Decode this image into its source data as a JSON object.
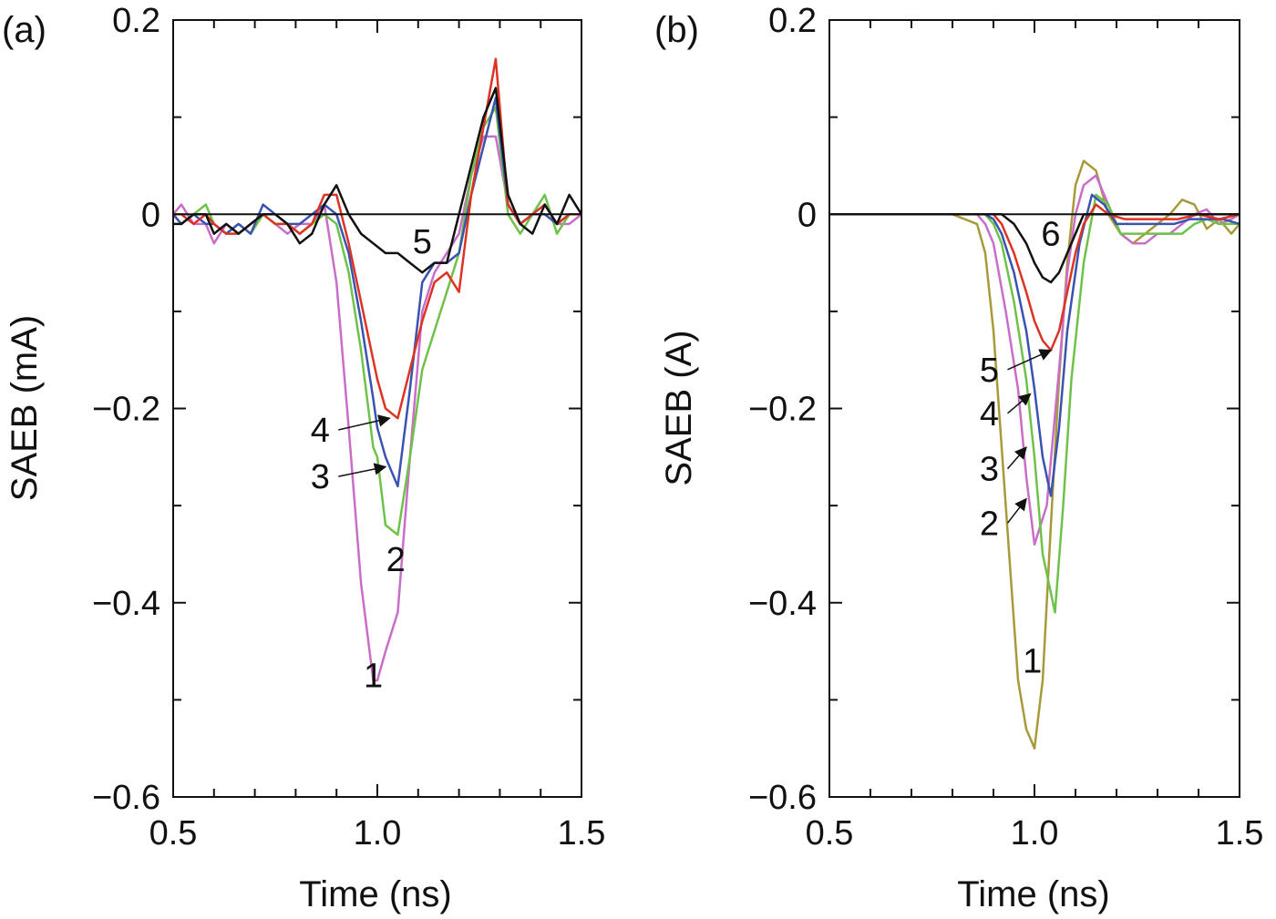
{
  "chart_data": [
    {
      "type": "line",
      "panel_label": "(a)",
      "xlabel": "Time (ns)",
      "ylabel": "SAEB (mA)",
      "xlim": [
        0.5,
        1.5
      ],
      "ylim": [
        -0.6,
        0.2
      ],
      "xticks": [
        0.5,
        1.0,
        1.5
      ],
      "xtick_labels": [
        "0.5",
        "1.0",
        "1.5"
      ],
      "yticks": [
        0.2,
        0,
        -0.2,
        -0.4,
        -0.6
      ],
      "ytick_labels": [
        "0.2",
        "0",
        "−0.2",
        "−0.4",
        "−0.6"
      ],
      "zero_line": true,
      "series": [
        {
          "name": "1",
          "color": "#c86ec8",
          "x": [
            0.5,
            0.52,
            0.55,
            0.58,
            0.6,
            0.63,
            0.66,
            0.69,
            0.72,
            0.75,
            0.78,
            0.81,
            0.84,
            0.87,
            0.9,
            0.93,
            0.96,
            0.99,
            1.0,
            1.02,
            1.05,
            1.08,
            1.11,
            1.14,
            1.17,
            1.2,
            1.23,
            1.26,
            1.29,
            1.32,
            1.35,
            1.38,
            1.41,
            1.44,
            1.47,
            1.5
          ],
          "y": [
            0.0,
            0.01,
            -0.01,
            -0.01,
            -0.03,
            -0.01,
            -0.02,
            -0.01,
            0.0,
            -0.01,
            -0.02,
            -0.01,
            -0.01,
            0.01,
            -0.07,
            -0.22,
            -0.38,
            -0.48,
            -0.48,
            -0.45,
            -0.41,
            -0.25,
            -0.1,
            -0.06,
            -0.04,
            -0.02,
            0.04,
            0.08,
            0.08,
            0.01,
            -0.01,
            0.0,
            0.0,
            -0.01,
            -0.01,
            0.0
          ]
        },
        {
          "name": "2",
          "color": "#6ec24a",
          "x": [
            0.5,
            0.52,
            0.55,
            0.58,
            0.6,
            0.63,
            0.66,
            0.69,
            0.72,
            0.75,
            0.78,
            0.81,
            0.84,
            0.87,
            0.9,
            0.93,
            0.96,
            0.99,
            1.0,
            1.02,
            1.05,
            1.08,
            1.11,
            1.14,
            1.17,
            1.2,
            1.23,
            1.26,
            1.29,
            1.32,
            1.35,
            1.38,
            1.41,
            1.44,
            1.47,
            1.5
          ],
          "y": [
            0.0,
            -0.01,
            0.0,
            0.01,
            -0.01,
            -0.02,
            -0.01,
            -0.02,
            0.0,
            -0.01,
            -0.01,
            -0.02,
            -0.01,
            0.0,
            -0.01,
            -0.06,
            -0.14,
            -0.24,
            -0.25,
            -0.32,
            -0.33,
            -0.25,
            -0.16,
            -0.12,
            -0.08,
            -0.04,
            0.04,
            0.09,
            0.11,
            0.0,
            -0.02,
            0.0,
            0.02,
            -0.02,
            0.0,
            0.0
          ]
        },
        {
          "name": "3",
          "color": "#3a52b0",
          "x": [
            0.5,
            0.52,
            0.55,
            0.58,
            0.6,
            0.63,
            0.66,
            0.69,
            0.72,
            0.75,
            0.78,
            0.81,
            0.84,
            0.87,
            0.9,
            0.93,
            0.96,
            0.99,
            1.0,
            1.02,
            1.05,
            1.08,
            1.11,
            1.14,
            1.17,
            1.2,
            1.23,
            1.26,
            1.29,
            1.32,
            1.35,
            1.38,
            1.41,
            1.44,
            1.47,
            1.5
          ],
          "y": [
            0.0,
            -0.01,
            0.0,
            -0.01,
            -0.01,
            -0.02,
            -0.01,
            -0.02,
            0.01,
            0.0,
            -0.01,
            -0.01,
            0.0,
            0.01,
            0.0,
            -0.04,
            -0.11,
            -0.19,
            -0.22,
            -0.25,
            -0.28,
            -0.18,
            -0.07,
            -0.05,
            -0.05,
            -0.04,
            0.02,
            0.07,
            0.12,
            0.01,
            -0.01,
            0.0,
            0.0,
            -0.01,
            0.0,
            0.0
          ]
        },
        {
          "name": "4",
          "color": "#dd3322",
          "x": [
            0.5,
            0.52,
            0.55,
            0.58,
            0.6,
            0.63,
            0.66,
            0.69,
            0.72,
            0.75,
            0.78,
            0.81,
            0.84,
            0.87,
            0.9,
            0.93,
            0.96,
            0.99,
            1.0,
            1.02,
            1.05,
            1.08,
            1.11,
            1.14,
            1.17,
            1.2,
            1.23,
            1.26,
            1.29,
            1.32,
            1.35,
            1.38,
            1.41,
            1.44,
            1.47,
            1.5
          ],
          "y": [
            0.0,
            0.0,
            -0.01,
            0.0,
            -0.01,
            -0.02,
            -0.02,
            -0.01,
            0.0,
            -0.01,
            -0.01,
            -0.02,
            -0.01,
            0.02,
            0.02,
            -0.03,
            -0.09,
            -0.15,
            -0.17,
            -0.2,
            -0.21,
            -0.16,
            -0.11,
            -0.07,
            -0.06,
            -0.08,
            0.02,
            0.09,
            0.16,
            0.01,
            -0.01,
            0.0,
            0.01,
            -0.01,
            0.0,
            0.0
          ]
        },
        {
          "name": "5",
          "color": "#111111",
          "x": [
            0.5,
            0.52,
            0.55,
            0.58,
            0.6,
            0.63,
            0.66,
            0.69,
            0.72,
            0.75,
            0.78,
            0.81,
            0.84,
            0.87,
            0.9,
            0.93,
            0.96,
            0.99,
            1.02,
            1.05,
            1.08,
            1.11,
            1.14,
            1.17,
            1.2,
            1.23,
            1.26,
            1.29,
            1.32,
            1.35,
            1.38,
            1.41,
            1.44,
            1.47,
            1.5
          ],
          "y": [
            -0.01,
            -0.01,
            0.0,
            0.0,
            -0.02,
            -0.01,
            -0.02,
            -0.01,
            0.0,
            0.0,
            -0.01,
            -0.03,
            -0.02,
            0.01,
            0.03,
            0.0,
            -0.02,
            -0.03,
            -0.04,
            -0.04,
            -0.05,
            -0.06,
            -0.05,
            -0.05,
            0.0,
            0.05,
            0.1,
            0.13,
            0.02,
            -0.01,
            -0.02,
            0.01,
            -0.01,
            0.02,
            0.0
          ]
        }
      ],
      "annotations": [
        {
          "text": "1",
          "x": 0.99,
          "y": -0.475
        },
        {
          "text": "2",
          "x": 1.045,
          "y": -0.355
        },
        {
          "text": "3",
          "x": 0.86,
          "y": -0.27,
          "arrow_to": [
            1.02,
            -0.26
          ]
        },
        {
          "text": "4",
          "x": 0.86,
          "y": -0.222,
          "arrow_to": [
            1.03,
            -0.21
          ]
        },
        {
          "text": "5",
          "x": 1.11,
          "y": -0.028
        }
      ]
    },
    {
      "type": "line",
      "panel_label": "(b)",
      "xlabel": "Time (ns)",
      "ylabel": "SAEB (A)",
      "xlim": [
        0.5,
        1.5
      ],
      "ylim": [
        -0.6,
        0.2
      ],
      "xticks": [
        0.5,
        1.0,
        1.5
      ],
      "xtick_labels": [
        "0.5",
        "1.0",
        "1.5"
      ],
      "yticks": [
        0.2,
        0,
        -0.2,
        -0.4,
        -0.6
      ],
      "ytick_labels": [
        "0.2",
        "0",
        "−0.2",
        "−0.4",
        "−0.6"
      ],
      "zero_line": true,
      "series": [
        {
          "name": "1",
          "color": "#a89a3a",
          "x": [
            0.5,
            0.8,
            0.86,
            0.88,
            0.9,
            0.93,
            0.96,
            0.98,
            1.0,
            1.02,
            1.04,
            1.06,
            1.08,
            1.1,
            1.12,
            1.15,
            1.18,
            1.21,
            1.24,
            1.27,
            1.3,
            1.33,
            1.36,
            1.39,
            1.42,
            1.45,
            1.48,
            1.5
          ],
          "y": [
            0.0,
            0.0,
            -0.01,
            -0.04,
            -0.12,
            -0.3,
            -0.48,
            -0.53,
            -0.55,
            -0.48,
            -0.32,
            -0.17,
            -0.05,
            0.03,
            0.055,
            0.045,
            0.0,
            -0.02,
            -0.03,
            -0.02,
            -0.01,
            0.0,
            0.015,
            0.01,
            -0.015,
            -0.005,
            -0.02,
            -0.01
          ]
        },
        {
          "name": "2",
          "color": "#c86ec8",
          "x": [
            0.5,
            0.8,
            0.86,
            0.88,
            0.9,
            0.93,
            0.96,
            0.98,
            1.0,
            1.03,
            1.06,
            1.08,
            1.1,
            1.12,
            1.15,
            1.18,
            1.21,
            1.24,
            1.27,
            1.3,
            1.33,
            1.36,
            1.39,
            1.42,
            1.45,
            1.48,
            1.5
          ],
          "y": [
            0.0,
            0.0,
            0.0,
            -0.01,
            -0.03,
            -0.1,
            -0.18,
            -0.27,
            -0.34,
            -0.3,
            -0.16,
            -0.06,
            0.0,
            0.03,
            0.04,
            0.01,
            -0.02,
            -0.03,
            -0.03,
            -0.02,
            -0.02,
            -0.01,
            0.0,
            0.005,
            -0.01,
            -0.005,
            0.0
          ]
        },
        {
          "name": "3",
          "color": "#6ec24a",
          "x": [
            0.5,
            0.8,
            0.88,
            0.9,
            0.92,
            0.95,
            0.98,
            1.0,
            1.02,
            1.05,
            1.07,
            1.09,
            1.12,
            1.15,
            1.18,
            1.21,
            1.24,
            1.27,
            1.3,
            1.33,
            1.36,
            1.39,
            1.42,
            1.45,
            1.48,
            1.5
          ],
          "y": [
            0.0,
            0.0,
            0.0,
            -0.01,
            -0.03,
            -0.09,
            -0.17,
            -0.25,
            -0.35,
            -0.41,
            -0.3,
            -0.17,
            -0.05,
            0.02,
            0.01,
            -0.02,
            -0.02,
            -0.02,
            -0.02,
            -0.02,
            -0.02,
            -0.01,
            -0.005,
            -0.01,
            -0.01,
            -0.01
          ]
        },
        {
          "name": "4",
          "color": "#3a52b0",
          "x": [
            0.5,
            0.8,
            0.88,
            0.9,
            0.92,
            0.95,
            0.98,
            1.0,
            1.02,
            1.04,
            1.06,
            1.08,
            1.11,
            1.14,
            1.17,
            1.2,
            1.23,
            1.26,
            1.3,
            1.34,
            1.38,
            1.42,
            1.46,
            1.5
          ],
          "y": [
            0.0,
            0.0,
            0.0,
            -0.005,
            -0.02,
            -0.06,
            -0.12,
            -0.18,
            -0.25,
            -0.29,
            -0.22,
            -0.12,
            -0.03,
            0.02,
            0.01,
            -0.01,
            -0.01,
            -0.01,
            -0.01,
            -0.01,
            -0.005,
            -0.005,
            -0.005,
            -0.01
          ]
        },
        {
          "name": "5",
          "color": "#dd3322",
          "x": [
            0.5,
            0.8,
            0.88,
            0.9,
            0.92,
            0.95,
            0.98,
            1.0,
            1.02,
            1.04,
            1.06,
            1.08,
            1.1,
            1.12,
            1.15,
            1.18,
            1.22,
            1.26,
            1.3,
            1.35,
            1.4,
            1.45,
            1.5
          ],
          "y": [
            0.0,
            0.0,
            0.0,
            0.0,
            -0.01,
            -0.04,
            -0.08,
            -0.11,
            -0.13,
            -0.14,
            -0.12,
            -0.08,
            -0.04,
            -0.01,
            0.01,
            0.0,
            -0.005,
            -0.005,
            -0.005,
            -0.005,
            0.0,
            -0.005,
            0.0
          ]
        },
        {
          "name": "6",
          "color": "#111111",
          "x": [
            0.5,
            0.8,
            0.88,
            0.92,
            0.95,
            0.98,
            1.0,
            1.02,
            1.04,
            1.06,
            1.08,
            1.1,
            1.12,
            1.15,
            1.2,
            1.3,
            1.4,
            1.5
          ],
          "y": [
            0.0,
            0.0,
            0.0,
            0.0,
            -0.01,
            -0.03,
            -0.05,
            -0.065,
            -0.07,
            -0.06,
            -0.04,
            -0.02,
            0.0,
            0.0,
            0.0,
            0.0,
            0.0,
            0.0
          ]
        }
      ],
      "annotations": [
        {
          "text": "1",
          "x": 0.995,
          "y": -0.46
        },
        {
          "text": "2",
          "x": 0.89,
          "y": -0.318,
          "arrow_to": [
            0.98,
            -0.293
          ]
        },
        {
          "text": "3",
          "x": 0.89,
          "y": -0.262,
          "arrow_to": [
            0.98,
            -0.24
          ]
        },
        {
          "text": "4",
          "x": 0.89,
          "y": -0.205,
          "arrow_to": [
            0.99,
            -0.185
          ]
        },
        {
          "text": "5",
          "x": 0.89,
          "y": -0.16,
          "arrow_to": [
            1.04,
            -0.14
          ]
        },
        {
          "text": "6",
          "x": 1.04,
          "y": -0.02
        }
      ]
    }
  ]
}
